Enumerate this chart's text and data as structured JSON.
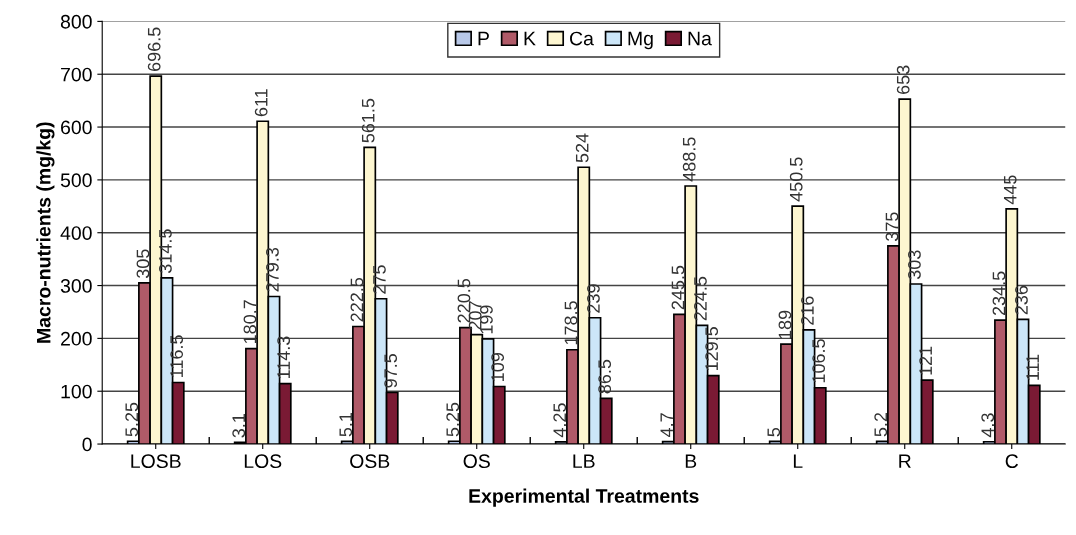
{
  "chart_data": {
    "type": "bar",
    "xlabel": "Experimental Treatments",
    "ylabel": "Macro-nutrients (mg/kg)",
    "categories": [
      "LOSB",
      "LOS",
      "OSB",
      "OS",
      "LB",
      "B",
      "L",
      "R",
      "C"
    ],
    "series": [
      {
        "name": "P",
        "color": "#b8c8e8",
        "values": [
          5.25,
          3.1,
          5.1,
          5.25,
          4.25,
          4.7,
          5,
          5.2,
          4.3
        ]
      },
      {
        "name": "K",
        "color": "#b05a68",
        "values": [
          305,
          180.7,
          222.5,
          220.5,
          178.5,
          245.5,
          189,
          375,
          234.5
        ]
      },
      {
        "name": "Ca",
        "color": "#fdf6d0",
        "values": [
          696.5,
          611,
          561.5,
          207,
          524,
          488.5,
          450.5,
          653,
          445
        ]
      },
      {
        "name": "Mg",
        "color": "#cce6f8",
        "values": [
          314.5,
          279.3,
          275,
          199,
          239,
          224.5,
          216,
          303,
          236
        ]
      },
      {
        "name": "Na",
        "color": "#7a1a34",
        "values": [
          116.5,
          114.3,
          97.5,
          109,
          86.5,
          129.5,
          106.5,
          121,
          111
        ]
      }
    ],
    "ylim": [
      0,
      800
    ],
    "yticks": [
      0,
      100,
      200,
      300,
      400,
      500,
      600,
      700,
      800
    ],
    "grid": "y",
    "legend": "top",
    "data_labels": true
  }
}
